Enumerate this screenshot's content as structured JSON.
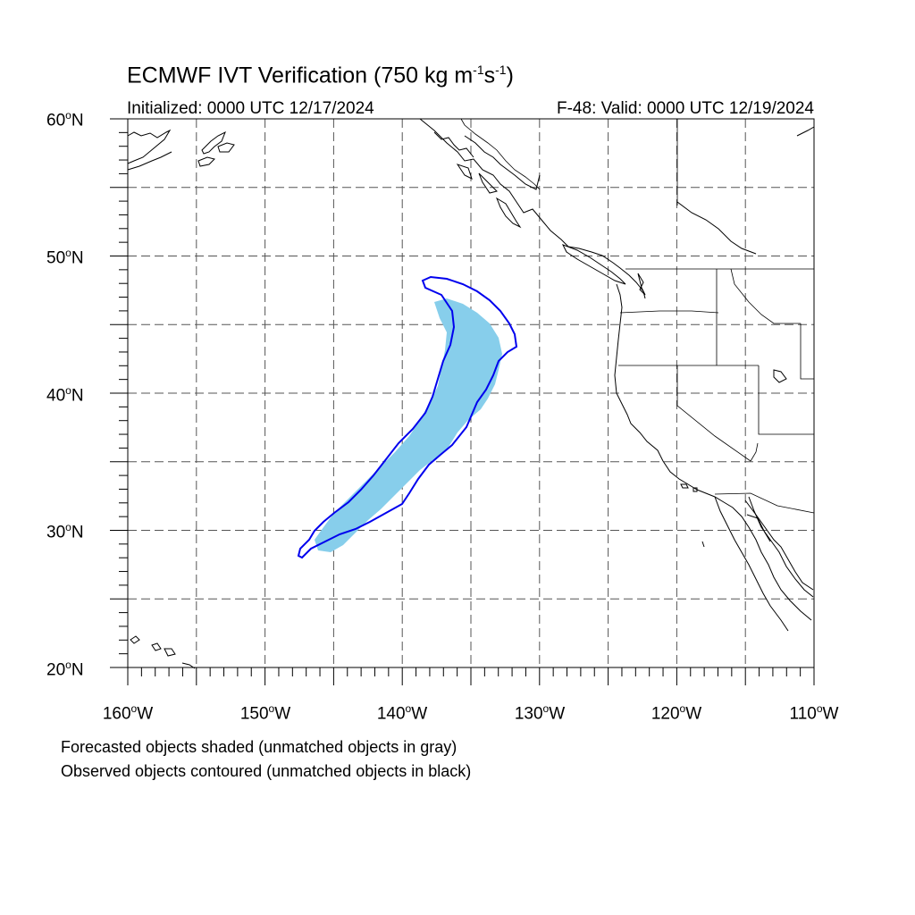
{
  "title": {
    "text": "ECMWF IVT Verification (750 kg m",
    "sup1": "-1",
    "mid": "s",
    "sup2": "-1",
    "end": ")"
  },
  "initialized": "Initialized: 0000 UTC 12/17/2024",
  "valid": "F-48: Valid: 0000 UTC 12/19/2024",
  "lat_labels": [
    "60oN",
    "50oN",
    "40oN",
    "30oN",
    "20oN"
  ],
  "lon_labels": [
    "160oW",
    "150oW",
    "140oW",
    "130oW",
    "120oW",
    "110oW"
  ],
  "legend_notes": [
    "Forecasted objects shaded (unmatched objects in gray)",
    "Observed objects contoured (unmatched objects in black)"
  ],
  "map": {
    "lat_range": [
      20,
      60
    ],
    "lon_range": [
      -160,
      -110
    ],
    "grid_spacing_deg": 5,
    "grid_on": true,
    "forecast_fill_color": "#87ceeb",
    "observed_contour_color": "#0000ee"
  }
}
